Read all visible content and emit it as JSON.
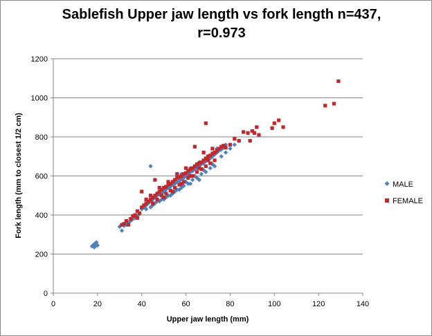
{
  "chart_data": {
    "type": "scatter",
    "title_line1": "Sablefish Upper jaw length vs fork length n=437,",
    "title_line2": "r=0.973",
    "xlabel": "Upper jaw length (mm)",
    "ylabel": "Fork length (mm to closest 1/2 cm)",
    "xlim": [
      0,
      140
    ],
    "ylim": [
      0,
      1200
    ],
    "xticks": [
      "0",
      "20",
      "40",
      "60",
      "80",
      "100",
      "120",
      "140"
    ],
    "yticks": [
      "0",
      "200",
      "400",
      "600",
      "800",
      "1000",
      "1200"
    ],
    "grid": "horizontal",
    "legend_position": "right",
    "series": [
      {
        "name": "MALE",
        "color": "#4f81bd",
        "marker": "diamond",
        "points": [
          [
            17.5,
            240
          ],
          [
            18,
            245
          ],
          [
            18.5,
            250
          ],
          [
            19,
            255
          ],
          [
            19.5,
            260
          ],
          [
            19,
            240
          ],
          [
            20,
            245
          ],
          [
            18.5,
            235
          ],
          [
            30,
            340
          ],
          [
            31,
            320
          ],
          [
            32,
            345
          ],
          [
            33,
            350
          ],
          [
            34,
            360
          ],
          [
            35,
            370
          ],
          [
            36,
            380
          ],
          [
            37,
            385
          ],
          [
            38,
            395
          ],
          [
            39,
            405
          ],
          [
            40,
            430
          ],
          [
            41,
            440
          ],
          [
            42,
            450
          ],
          [
            43,
            460
          ],
          [
            44,
            470
          ],
          [
            44,
            650
          ],
          [
            45,
            480
          ],
          [
            46,
            490
          ],
          [
            47,
            500
          ],
          [
            48,
            505
          ],
          [
            49,
            510
          ],
          [
            50,
            520
          ],
          [
            51,
            530
          ],
          [
            52,
            540
          ],
          [
            53,
            545
          ],
          [
            54,
            555
          ],
          [
            55,
            560
          ],
          [
            56,
            570
          ],
          [
            57,
            575
          ],
          [
            58,
            585
          ],
          [
            59,
            590
          ],
          [
            60,
            600
          ],
          [
            61,
            610
          ],
          [
            62,
            620
          ],
          [
            63,
            625
          ],
          [
            64,
            635
          ],
          [
            65,
            640
          ],
          [
            66,
            650
          ],
          [
            67,
            660
          ],
          [
            68,
            665
          ],
          [
            69,
            675
          ],
          [
            70,
            680
          ],
          [
            71,
            690
          ],
          [
            72,
            700
          ],
          [
            73,
            710
          ],
          [
            74,
            720
          ],
          [
            75,
            730
          ],
          [
            76,
            735
          ],
          [
            77,
            745
          ],
          [
            78,
            720
          ],
          [
            45,
            450
          ],
          [
            47,
            470
          ],
          [
            49,
            480
          ],
          [
            51,
            490
          ],
          [
            53,
            500
          ],
          [
            55,
            520
          ],
          [
            57,
            530
          ],
          [
            59,
            550
          ],
          [
            61,
            560
          ],
          [
            63,
            580
          ],
          [
            65,
            590
          ],
          [
            67,
            610
          ],
          [
            69,
            620
          ],
          [
            71,
            640
          ],
          [
            73,
            650
          ],
          [
            66,
            580
          ],
          [
            62,
            560
          ],
          [
            58,
            540
          ],
          [
            54,
            510
          ],
          [
            50,
            480
          ],
          [
            46,
            460
          ],
          [
            42,
            430
          ],
          [
            44,
            440
          ],
          [
            48,
            470
          ],
          [
            52,
            500
          ],
          [
            56,
            530
          ],
          [
            60,
            570
          ],
          [
            64,
            600
          ],
          [
            68,
            630
          ],
          [
            72,
            660
          ],
          [
            58,
            610
          ],
          [
            62,
            640
          ],
          [
            66,
            670
          ],
          [
            70,
            700
          ],
          [
            74,
            740
          ],
          [
            76,
            700
          ],
          [
            78,
            760
          ],
          [
            80,
            740
          ],
          [
            82,
            760
          ],
          [
            84,
            780
          ]
        ]
      },
      {
        "name": "FEMALE",
        "color": "#c0282d",
        "marker": "square",
        "points": [
          [
            31,
            350
          ],
          [
            32,
            355
          ],
          [
            33,
            370
          ],
          [
            34,
            350
          ],
          [
            35,
            380
          ],
          [
            36,
            395
          ],
          [
            37,
            400
          ],
          [
            38,
            420
          ],
          [
            38,
            385
          ],
          [
            39,
            410
          ],
          [
            40,
            440
          ],
          [
            40,
            520
          ],
          [
            41,
            450
          ],
          [
            42,
            460
          ],
          [
            43,
            470
          ],
          [
            44,
            480
          ],
          [
            45,
            490
          ],
          [
            46,
            500
          ],
          [
            46,
            580
          ],
          [
            47,
            510
          ],
          [
            48,
            520
          ],
          [
            49,
            530
          ],
          [
            50,
            540
          ],
          [
            51,
            545
          ],
          [
            52,
            555
          ],
          [
            53,
            560
          ],
          [
            54,
            570
          ],
          [
            55,
            580
          ],
          [
            56,
            590
          ],
          [
            57,
            595
          ],
          [
            58,
            600
          ],
          [
            59,
            610
          ],
          [
            60,
            615
          ],
          [
            61,
            625
          ],
          [
            62,
            635
          ],
          [
            63,
            640
          ],
          [
            64,
            650
          ],
          [
            65,
            660
          ],
          [
            66,
            665
          ],
          [
            67,
            670
          ],
          [
            68,
            680
          ],
          [
            69,
            690
          ],
          [
            69,
            870
          ],
          [
            70,
            700
          ],
          [
            71,
            705
          ],
          [
            72,
            715
          ],
          [
            73,
            720
          ],
          [
            74,
            730
          ],
          [
            75,
            740
          ],
          [
            76,
            750
          ],
          [
            77,
            755
          ],
          [
            78,
            745
          ],
          [
            80,
            760
          ],
          [
            82,
            790
          ],
          [
            84,
            780
          ],
          [
            86,
            825
          ],
          [
            88,
            820
          ],
          [
            89,
            780
          ],
          [
            90,
            830
          ],
          [
            91,
            820
          ],
          [
            92,
            850
          ],
          [
            93,
            810
          ],
          [
            99,
            845
          ],
          [
            100,
            870
          ],
          [
            102,
            885
          ],
          [
            104,
            850
          ],
          [
            123,
            960
          ],
          [
            127,
            970
          ],
          [
            129,
            1085
          ],
          [
            45,
            460
          ],
          [
            47,
            480
          ],
          [
            49,
            500
          ],
          [
            51,
            510
          ],
          [
            53,
            525
          ],
          [
            55,
            540
          ],
          [
            57,
            555
          ],
          [
            59,
            570
          ],
          [
            61,
            590
          ],
          [
            63,
            600
          ],
          [
            65,
            620
          ],
          [
            67,
            635
          ],
          [
            69,
            650
          ],
          [
            71,
            665
          ],
          [
            73,
            680
          ],
          [
            64,
            750
          ],
          [
            68,
            720
          ],
          [
            72,
            740
          ],
          [
            60,
            640
          ],
          [
            56,
            610
          ],
          [
            52,
            570
          ],
          [
            48,
            540
          ],
          [
            44,
            500
          ],
          [
            42,
            480
          ],
          [
            50,
            490
          ],
          [
            54,
            520
          ],
          [
            58,
            560
          ],
          [
            62,
            600
          ],
          [
            66,
            640
          ],
          [
            70,
            680
          ]
        ]
      }
    ]
  }
}
